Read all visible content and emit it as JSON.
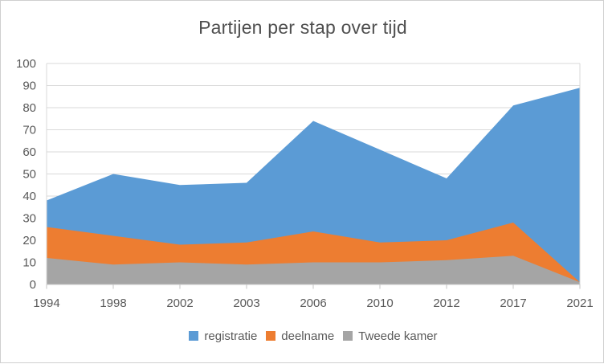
{
  "chart_data": {
    "type": "area",
    "overlap": true,
    "title": "Partijen per stap over tijd",
    "x": [
      "1994",
      "1998",
      "2002",
      "2003",
      "2006",
      "2010",
      "2012",
      "2017",
      "2021"
    ],
    "series": [
      {
        "name": "registratie",
        "color": "#5B9BD5",
        "values": [
          38,
          50,
          45,
          46,
          74,
          61,
          48,
          81,
          89
        ]
      },
      {
        "name": "deelname",
        "color": "#ED7D31",
        "values": [
          26,
          22,
          18,
          19,
          24,
          19,
          20,
          28,
          1
        ]
      },
      {
        "name": "Tweede kamer",
        "color": "#A5A5A5",
        "values": [
          12,
          9,
          10,
          9,
          10,
          10,
          11,
          13,
          1
        ]
      }
    ],
    "ylim": [
      0,
      100
    ],
    "ytick_step": 10,
    "grid": "horizontal",
    "legend_position": "bottom",
    "grid_color": "#D9D9D9",
    "axis_color": "#C6C6C6",
    "label_color": "#595959"
  }
}
